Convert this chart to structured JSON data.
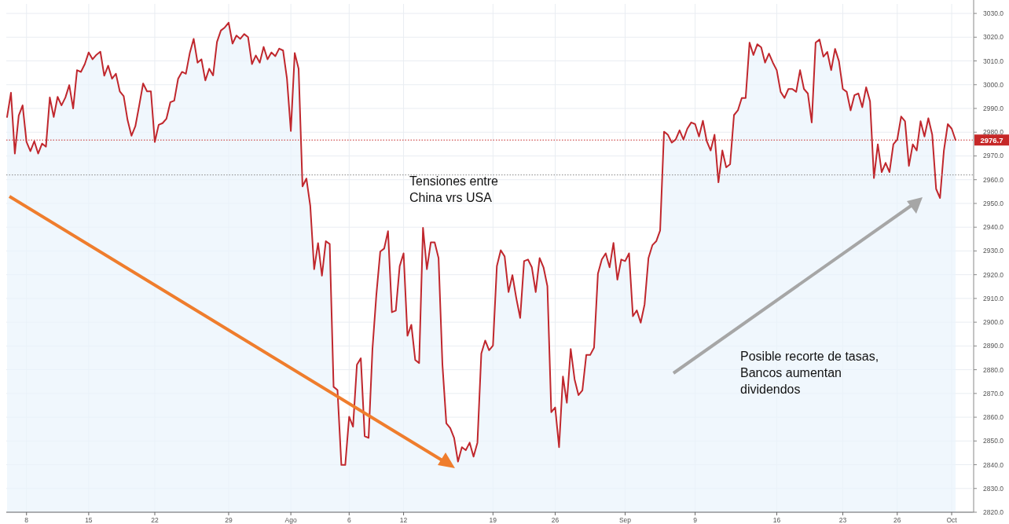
{
  "chart_data": {
    "type": "area",
    "grid": true,
    "ylim": [
      2820,
      3034
    ],
    "categories": [
      null,
      null,
      null,
      null,
      null,
      "8",
      null,
      null,
      null,
      null,
      null,
      null,
      null,
      null,
      null,
      null,
      null,
      null,
      null,
      null,
      null,
      "15",
      null,
      null,
      null,
      null,
      null,
      null,
      null,
      null,
      null,
      null,
      null,
      null,
      null,
      null,
      null,
      null,
      "22",
      null,
      null,
      null,
      null,
      null,
      null,
      null,
      null,
      null,
      null,
      null,
      null,
      null,
      null,
      null,
      null,
      null,
      null,
      "29",
      null,
      null,
      null,
      null,
      null,
      null,
      null,
      null,
      null,
      null,
      null,
      null,
      null,
      null,
      null,
      "Ago",
      null,
      null,
      null,
      null,
      null,
      null,
      null,
      null,
      null,
      null,
      null,
      null,
      null,
      null,
      "6",
      null,
      null,
      null,
      null,
      null,
      null,
      null,
      null,
      null,
      null,
      null,
      null,
      null,
      "12",
      null,
      null,
      null,
      null,
      null,
      null,
      null,
      null,
      null,
      null,
      null,
      null,
      null,
      null,
      null,
      null,
      null,
      null,
      null,
      null,
      null,
      null,
      "19",
      null,
      null,
      null,
      null,
      null,
      null,
      null,
      null,
      null,
      null,
      null,
      null,
      null,
      null,
      null,
      "26",
      null,
      null,
      null,
      null,
      null,
      null,
      null,
      null,
      null,
      null,
      null,
      null,
      null,
      null,
      null,
      null,
      null,
      "Sep",
      null,
      null,
      null,
      null,
      null,
      null,
      null,
      null,
      null,
      null,
      null,
      null,
      null,
      null,
      null,
      null,
      null,
      "9",
      null,
      null,
      null,
      null,
      null,
      null,
      null,
      null,
      null,
      null,
      null,
      null,
      null,
      null,
      null,
      null,
      null,
      null,
      null,
      null,
      "16",
      null,
      null,
      null,
      null,
      null,
      null,
      null,
      null,
      null,
      null,
      null,
      null,
      null,
      null,
      null,
      null,
      "23",
      null,
      null,
      null,
      null,
      null,
      null,
      null,
      null,
      null,
      null,
      null,
      null,
      null,
      "26",
      null,
      null,
      null,
      null,
      null,
      null,
      null,
      null,
      null,
      null,
      null,
      null,
      null,
      "Oct",
      null
    ],
    "yticks": [
      {
        "value": 2820,
        "label": "2820.0"
      },
      {
        "value": 2830,
        "label": "2830.0"
      },
      {
        "value": 2840,
        "label": "2840.0"
      },
      {
        "value": 2850,
        "label": "2850.0"
      },
      {
        "value": 2860,
        "label": "2860.0"
      },
      {
        "value": 2870,
        "label": "2870.0"
      },
      {
        "value": 2880,
        "label": "2880.0"
      },
      {
        "value": 2890,
        "label": "2890.0"
      },
      {
        "value": 2900,
        "label": "2900.0"
      },
      {
        "value": 2910,
        "label": "2910.0"
      },
      {
        "value": 2920,
        "label": "2920.0"
      },
      {
        "value": 2930,
        "label": "2930.0"
      },
      {
        "value": 2940,
        "label": "2940.0"
      },
      {
        "value": 2950,
        "label": "2950.0"
      },
      {
        "value": 2960,
        "label": "2960.0"
      },
      {
        "value": 2970,
        "label": "2970.0"
      },
      {
        "value": 2980,
        "label": "2980.0"
      },
      {
        "value": 2990,
        "label": "2990.0"
      },
      {
        "value": 3000,
        "label": "3000.0"
      },
      {
        "value": 3010,
        "label": "3010.0"
      },
      {
        "value": 3020,
        "label": "3020.0"
      },
      {
        "value": 3030,
        "label": "3030.0"
      }
    ],
    "ref_lines": [
      {
        "axis": "y",
        "value": 2976.7,
        "label": "2976.7",
        "color": "#c62828",
        "line_style": "dotted"
      },
      {
        "axis": "y",
        "value": 2962,
        "color": "#888888",
        "line_style": "dotted"
      }
    ],
    "annotations": [
      "Tensiones entre\nChina vrs USA",
      "Posible recorte de tasas,\nBancos aumentan\ndividendos"
    ],
    "series": [
      {
        "color": "#c0272d",
        "values": [
          2986.4,
          2996.6,
          2971.0,
          2987.0,
          2991.3,
          2975.9,
          2972.0,
          2976.2,
          2971.0,
          2975.2,
          2973.9,
          2994.6,
          2986.4,
          2994.9,
          2991.3,
          2994.6,
          2999.8,
          2990.0,
          3006.1,
          3005.4,
          3008.7,
          3013.6,
          3010.7,
          3012.6,
          3013.9,
          3003.8,
          3008.0,
          3002.5,
          3004.6,
          2997.2,
          2995.2,
          2985.1,
          2978.5,
          2982.5,
          2991.3,
          3000.5,
          2997.2,
          2997.2,
          2975.9,
          2983.1,
          2983.8,
          2985.7,
          2992.6,
          2993.3,
          3002.5,
          3005.4,
          3004.6,
          3013.3,
          3019.3,
          3009.3,
          3010.7,
          3001.8,
          3006.7,
          3003.9,
          3018.0,
          3022.8,
          3024.1,
          3026.1,
          3017.3,
          3020.7,
          3019.3,
          3021.3,
          3020.0,
          3008.7,
          3012.3,
          3009.3,
          3015.9,
          3010.7,
          3013.6,
          3012.0,
          3015.2,
          3014.4,
          3002.6,
          2980.5,
          3013.3,
          3006.7,
          2957.2,
          2960.5,
          2949.0,
          2922.3,
          2933.3,
          2919.6,
          2934.1,
          2932.9,
          2872.8,
          2871.4,
          2839.9,
          2839.9,
          2860.2,
          2856.0,
          2882.1,
          2884.8,
          2852.0,
          2851.3,
          2888.8,
          2911.6,
          2929.7,
          2931.0,
          2938.3,
          2904.2,
          2904.9,
          2923.6,
          2929.0,
          2894.3,
          2898.9,
          2884.1,
          2882.8,
          2939.7,
          2922.3,
          2933.6,
          2933.6,
          2927.0,
          2882.1,
          2857.4,
          2855.4,
          2851.3,
          2841.3,
          2847.4,
          2846.1,
          2849.3,
          2843.4,
          2849.3,
          2886.8,
          2892.3,
          2888.2,
          2890.2,
          2923.6,
          2930.3,
          2927.7,
          2912.7,
          2919.8,
          2910.1,
          2901.8,
          2925.7,
          2926.4,
          2923.1,
          2912.7,
          2927.0,
          2923.1,
          2915.2,
          2862.1,
          2864.1,
          2847.4,
          2877.1,
          2866.1,
          2888.7,
          2875.9,
          2869.3,
          2871.3,
          2886.2,
          2886.2,
          2889.3,
          2920.5,
          2926.4,
          2929.0,
          2923.1,
          2933.4,
          2917.9,
          2926.4,
          2925.7,
          2929.0,
          2902.5,
          2905.0,
          2899.8,
          2907.5,
          2927.0,
          2932.4,
          2934.1,
          2938.6,
          2980.2,
          2978.9,
          2975.6,
          2976.9,
          2980.8,
          2976.9,
          2981.5,
          2984.1,
          2983.4,
          2978.2,
          2984.8,
          2976.2,
          2972.3,
          2978.9,
          2958.9,
          2972.3,
          2965.2,
          2966.5,
          2987.2,
          2989.2,
          2994.4,
          2994.4,
          3017.7,
          3012.5,
          3017.0,
          3015.7,
          3009.3,
          3013.1,
          3009.3,
          3006.1,
          2997.0,
          2994.4,
          2998.2,
          2998.2,
          2997.0,
          3006.1,
          2998.2,
          2996.3,
          2984.1,
          3017.7,
          3019.0,
          3011.8,
          3013.8,
          3006.1,
          3015.1,
          3009.9,
          2998.2,
          2997.0,
          2989.2,
          2995.6,
          2996.3,
          2990.5,
          2998.9,
          2993.0,
          2960.7,
          2974.9,
          2963.2,
          2967.1,
          2963.2,
          2974.9,
          2976.9,
          2986.6,
          2984.6,
          2965.8,
          2974.9,
          2972.3,
          2984.6,
          2978.2,
          2985.9,
          2978.9,
          2956.1,
          2952.3,
          2972.3,
          2983.4,
          2981.5,
          2976.7
        ]
      }
    ]
  }
}
